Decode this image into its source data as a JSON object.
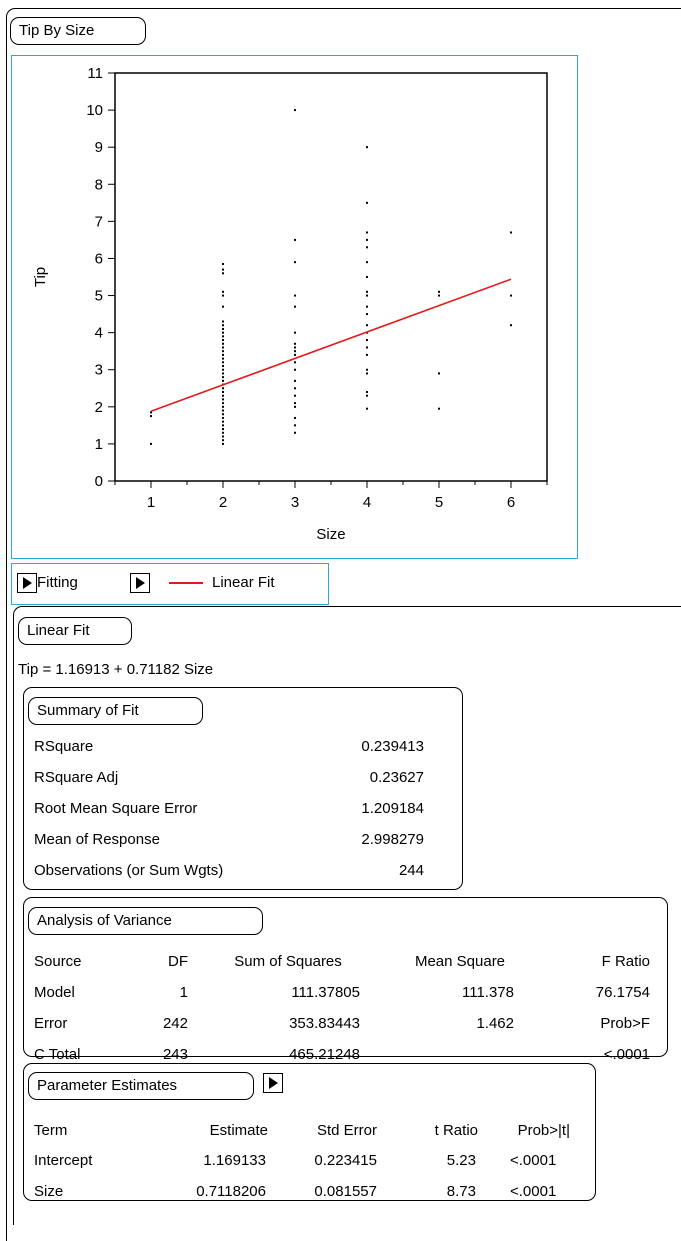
{
  "window": {
    "title": "Tip By Size"
  },
  "chart_data": {
    "type": "scatter",
    "title": "",
    "xlabel": "Size",
    "ylabel": "Tip",
    "xlim": [
      0.5,
      6.5
    ],
    "ylim": [
      0,
      11
    ],
    "xticks": [
      1,
      2,
      3,
      4,
      5,
      6
    ],
    "yticks": [
      0,
      1,
      2,
      3,
      4,
      5,
      6,
      7,
      8,
      9,
      10,
      11
    ],
    "grid": false,
    "points": [
      [
        1,
        1.0
      ],
      [
        1,
        1.75
      ],
      [
        1,
        1.85
      ],
      [
        2,
        1.0
      ],
      [
        2,
        1.1
      ],
      [
        2,
        1.2
      ],
      [
        2,
        1.3
      ],
      [
        2,
        1.4
      ],
      [
        2,
        1.5
      ],
      [
        2,
        1.6
      ],
      [
        2,
        1.7
      ],
      [
        2,
        1.8
      ],
      [
        2,
        1.9
      ],
      [
        2,
        2.0
      ],
      [
        2,
        2.1
      ],
      [
        2,
        2.2
      ],
      [
        2,
        2.3
      ],
      [
        2,
        2.4
      ],
      [
        2,
        2.5
      ],
      [
        2,
        2.6
      ],
      [
        2,
        2.7
      ],
      [
        2,
        2.8
      ],
      [
        2,
        2.9
      ],
      [
        2,
        3.0
      ],
      [
        2,
        3.1
      ],
      [
        2,
        3.2
      ],
      [
        2,
        3.3
      ],
      [
        2,
        3.4
      ],
      [
        2,
        3.5
      ],
      [
        2,
        3.6
      ],
      [
        2,
        3.7
      ],
      [
        2,
        3.8
      ],
      [
        2,
        3.9
      ],
      [
        2,
        4.0
      ],
      [
        2,
        4.1
      ],
      [
        2,
        4.2
      ],
      [
        2,
        4.3
      ],
      [
        2,
        4.7
      ],
      [
        2,
        5.0
      ],
      [
        2,
        5.1
      ],
      [
        2,
        5.6
      ],
      [
        2,
        5.7
      ],
      [
        2,
        5.85
      ],
      [
        3,
        1.3
      ],
      [
        3,
        1.5
      ],
      [
        3,
        1.7
      ],
      [
        3,
        2.0
      ],
      [
        3,
        2.1
      ],
      [
        3,
        2.3
      ],
      [
        3,
        2.5
      ],
      [
        3,
        2.7
      ],
      [
        3,
        3.0
      ],
      [
        3,
        3.2
      ],
      [
        3,
        3.4
      ],
      [
        3,
        3.5
      ],
      [
        3,
        3.6
      ],
      [
        3,
        3.7
      ],
      [
        3,
        4.0
      ],
      [
        3,
        4.7
      ],
      [
        3,
        5.0
      ],
      [
        3,
        5.9
      ],
      [
        3,
        6.5
      ],
      [
        3,
        10.0
      ],
      [
        4,
        1.95
      ],
      [
        4,
        2.3
      ],
      [
        4,
        2.4
      ],
      [
        4,
        2.9
      ],
      [
        4,
        3.0
      ],
      [
        4,
        3.4
      ],
      [
        4,
        3.6
      ],
      [
        4,
        3.8
      ],
      [
        4,
        4.0
      ],
      [
        4,
        4.2
      ],
      [
        4,
        4.5
      ],
      [
        4,
        4.7
      ],
      [
        4,
        5.0
      ],
      [
        4,
        5.1
      ],
      [
        4,
        5.5
      ],
      [
        4,
        5.9
      ],
      [
        4,
        6.3
      ],
      [
        4,
        6.5
      ],
      [
        4,
        6.7
      ],
      [
        4,
        7.5
      ],
      [
        4,
        9.0
      ],
      [
        5,
        1.95
      ],
      [
        5,
        2.9
      ],
      [
        5,
        5.0
      ],
      [
        5,
        5.1
      ],
      [
        6,
        4.2
      ],
      [
        6,
        5.0
      ],
      [
        6,
        6.7
      ]
    ],
    "fit_line": {
      "name": "Linear Fit",
      "color": "#e31a1c",
      "intercept": 1.16913,
      "slope": 0.71182,
      "x_range": [
        1,
        6
      ]
    }
  },
  "legend_bar": {
    "fitting_label": "Fitting",
    "line_label": "Linear Fit",
    "line_color": "#e31a1c"
  },
  "linear_fit": {
    "title": "Linear Fit",
    "equation": "Tip = 1.16913 + 0.71182 Size",
    "summary": {
      "title": "Summary of Fit",
      "rows": [
        {
          "label": "RSquare",
          "value": "0.239413"
        },
        {
          "label": "RSquare Adj",
          "value": "0.23627"
        },
        {
          "label": "Root Mean Square Error",
          "value": "1.209184"
        },
        {
          "label": "Mean of Response",
          "value": "2.998279"
        },
        {
          "label": "Observations (or Sum Wgts)",
          "value": "244"
        }
      ]
    },
    "anova": {
      "title": "Analysis of Variance",
      "headers": [
        "Source",
        "DF",
        "Sum of Squares",
        "Mean Square",
        "F Ratio"
      ],
      "rows": [
        [
          "Model",
          "1",
          "111.37805",
          "111.378",
          "76.1754"
        ],
        [
          "Error",
          "242",
          "353.83443",
          "1.462",
          "Prob>F"
        ],
        [
          "C Total",
          "243",
          "465.21248",
          "",
          "<.0001"
        ]
      ]
    },
    "params": {
      "title": "Parameter Estimates",
      "headers": [
        "Term",
        "Estimate",
        "Std Error",
        "t Ratio",
        "Prob>|t|"
      ],
      "rows": [
        [
          "Intercept",
          "1.169133",
          "0.223415",
          "5.23",
          "<.0001"
        ],
        [
          "Size",
          "0.7118206",
          "0.081557",
          "8.73",
          "<.0001"
        ]
      ]
    }
  }
}
